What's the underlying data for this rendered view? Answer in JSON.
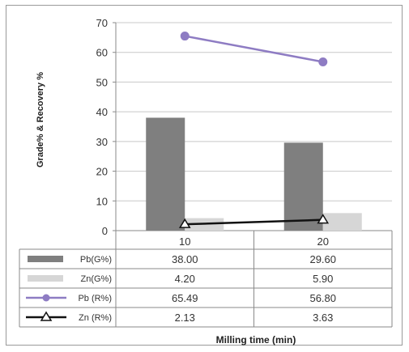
{
  "chart_data": {
    "type": "bar",
    "title": "",
    "xlabel": "Milling time (min)",
    "ylabel": "Grade% & Recovery %",
    "ylim": [
      0,
      70
    ],
    "yticks": [
      0,
      10,
      20,
      30,
      40,
      50,
      60,
      70
    ],
    "categories": [
      "10",
      "20"
    ],
    "grid": true,
    "legend_placement": "table-below",
    "series": [
      {
        "name": "Pb(G%)",
        "kind": "bar",
        "color": "#7f7f7f",
        "values": [
          38.0,
          29.6
        ],
        "labels": [
          "38.00",
          "29.60"
        ]
      },
      {
        "name": "Zn(G%)",
        "kind": "bar",
        "color": "#d6d6d6",
        "values": [
          4.2,
          5.9
        ],
        "labels": [
          "4.20",
          "5.90"
        ]
      },
      {
        "name": "Pb (R%)",
        "kind": "line",
        "color": "#8e7cc3",
        "marker": "circle",
        "values": [
          65.49,
          56.8
        ],
        "labels": [
          "65.49",
          "56.80"
        ]
      },
      {
        "name": "Zn (R%)",
        "kind": "line",
        "color": "#111111",
        "marker": "triangle",
        "values": [
          2.13,
          3.63
        ],
        "labels": [
          "2.13",
          "3.63"
        ]
      }
    ]
  }
}
